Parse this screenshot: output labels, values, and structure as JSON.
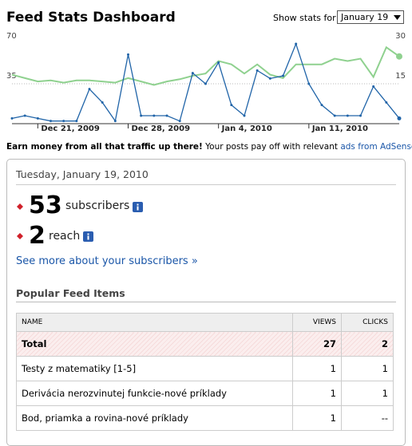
{
  "header": {
    "title": "Feed Stats Dashboard",
    "show_stats_for": "Show stats for",
    "selected_date": "January 19"
  },
  "chart_data": {
    "type": "line",
    "categories": [
      null,
      null,
      "Dec 21, 2009",
      null,
      null,
      null,
      null,
      null,
      null,
      "Dec 28, 2009",
      null,
      null,
      null,
      null,
      null,
      null,
      "Jan 4, 2010",
      null,
      null,
      null,
      null,
      null,
      null,
      "Jan 11, 2010",
      null,
      null,
      null,
      null,
      null,
      null,
      null
    ],
    "series": [
      {
        "color": "#8fd18f",
        "values": [
          43,
          40,
          37,
          38,
          36,
          38,
          38,
          37,
          36,
          40,
          37,
          34,
          37,
          39,
          42,
          44,
          55,
          52,
          44,
          52,
          43,
          40,
          52,
          52,
          52,
          57,
          55,
          57,
          41,
          67,
          59
        ]
      },
      {
        "color": "#2064a8",
        "axis": "y2",
        "values": [
          2,
          3,
          2,
          1,
          1,
          1,
          13,
          8,
          1,
          26,
          3,
          3,
          3,
          1,
          19,
          15,
          23,
          7,
          3,
          20,
          17,
          18,
          30,
          15,
          7,
          3,
          3,
          3,
          14,
          8,
          2
        ]
      }
    ],
    "ylim": [
      0,
      70
    ],
    "yticks": [
      35,
      70
    ],
    "y2lim": [
      0,
      30
    ],
    "y2ticks": [
      15,
      30
    ],
    "grid": true
  },
  "adsense_note": {
    "bold": "Earn money from all that traffic up there!",
    "text": "Your posts pay off with relevant",
    "link": "ads from AdSense",
    "end": "."
  },
  "panel": {
    "date": "Tuesday, January 19, 2010",
    "subscribers": {
      "value": "53",
      "label": "subscribers"
    },
    "reach": {
      "value": "2",
      "label": "reach"
    },
    "more_link": "See more about your subscribers »"
  },
  "popular": {
    "title": "Popular Feed Items",
    "columns": [
      "NAME",
      "VIEWS",
      "CLICKS"
    ],
    "rows": [
      [
        "Total",
        "27",
        "2"
      ],
      [
        "Testy z matematiky [1-5]",
        "1",
        "1"
      ],
      [
        "Derivácia nerozvinutej funkcie-nové príklady",
        "1",
        "1"
      ],
      [
        "Bod, priamka a rovina-nové príklady",
        "1",
        "--"
      ]
    ]
  }
}
